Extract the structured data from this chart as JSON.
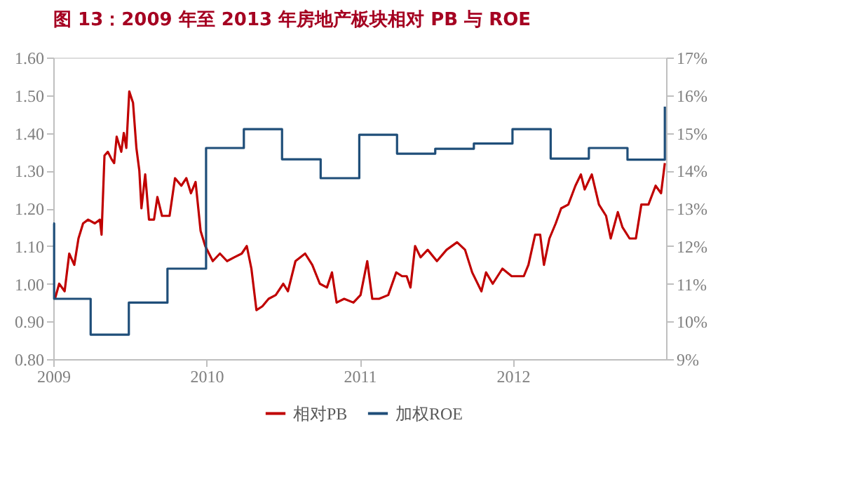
{
  "chart_data": {
    "type": "line",
    "title": "图 13：2009 年至 2013 年房地产板块相对 PB 与 ROE",
    "xlim": [
      "2009-01-01",
      "2012-12-31"
    ],
    "xticks": [
      {
        "value": "2009-01-01",
        "label": "2009"
      },
      {
        "value": "2010-01-01",
        "label": "2010"
      },
      {
        "value": "2011-01-01",
        "label": "2011"
      },
      {
        "value": "2012-01-01",
        "label": "2012"
      }
    ],
    "ylim": [
      0.8,
      1.6
    ],
    "yticks": [
      {
        "value": 0.8,
        "label": "0.80"
      },
      {
        "value": 0.9,
        "label": "0.90"
      },
      {
        "value": 1.0,
        "label": "1.00"
      },
      {
        "value": 1.1,
        "label": "1.10"
      },
      {
        "value": 1.2,
        "label": "1.20"
      },
      {
        "value": 1.3,
        "label": "1.30"
      },
      {
        "value": 1.4,
        "label": "1.40"
      },
      {
        "value": 1.5,
        "label": "1.50"
      },
      {
        "value": 1.6,
        "label": "1.60"
      }
    ],
    "y2lim": [
      9,
      17
    ],
    "y2ticks": [
      {
        "value": 9,
        "label": "9%"
      },
      {
        "value": 10,
        "label": "10%"
      },
      {
        "value": 11,
        "label": "11%"
      },
      {
        "value": 12,
        "label": "12%"
      },
      {
        "value": 13,
        "label": "13%"
      },
      {
        "value": 14,
        "label": "14%"
      },
      {
        "value": 15,
        "label": "15%"
      },
      {
        "value": 16,
        "label": "16%"
      },
      {
        "value": 17,
        "label": "17%"
      }
    ],
    "grid": false,
    "legend": "bottom",
    "series": [
      {
        "name": "相对PB",
        "color": "#c00000",
        "x": [
          "2009-01-05",
          "2009-01-15",
          "2009-01-28",
          "2009-02-08",
          "2009-02-20",
          "2009-03-02",
          "2009-03-13",
          "2009-03-25",
          "2009-04-10",
          "2009-04-22",
          "2009-04-26",
          "2009-05-03",
          "2009-05-11",
          "2009-05-20",
          "2009-05-26",
          "2009-06-01",
          "2009-06-12",
          "2009-06-18",
          "2009-06-24",
          "2009-07-01",
          "2009-07-10",
          "2009-07-18",
          "2009-07-25",
          "2009-07-30",
          "2009-08-08",
          "2009-08-17",
          "2009-08-29",
          "2009-09-06",
          "2009-09-17",
          "2009-10-05",
          "2009-10-18",
          "2009-11-02",
          "2009-11-14",
          "2009-11-25",
          "2009-12-06",
          "2009-12-18",
          "2009-12-29",
          "2010-01-16",
          "2010-02-02",
          "2010-02-19",
          "2010-03-08",
          "2010-03-26",
          "2010-04-07",
          "2010-04-18",
          "2010-04-30",
          "2010-05-14",
          "2010-05-29",
          "2010-06-15",
          "2010-07-03",
          "2010-07-14",
          "2010-08-01",
          "2010-08-24",
          "2010-09-10",
          "2010-09-28",
          "2010-10-15",
          "2010-10-27",
          "2010-11-07",
          "2010-11-25",
          "2010-12-17",
          "2011-01-03",
          "2011-01-19",
          "2011-01-31",
          "2011-02-16",
          "2011-03-10",
          "2011-03-29",
          "2011-04-12",
          "2011-04-23",
          "2011-05-02",
          "2011-05-13",
          "2011-05-26",
          "2011-06-12",
          "2011-07-04",
          "2011-07-27",
          "2011-08-21",
          "2011-09-09",
          "2011-09-26",
          "2011-10-18",
          "2011-10-29",
          "2011-11-14",
          "2011-12-07",
          "2011-12-29",
          "2012-01-27",
          "2012-02-07",
          "2012-02-23",
          "2012-03-06",
          "2012-03-15",
          "2012-03-28",
          "2012-04-12",
          "2012-04-25",
          "2012-05-12",
          "2012-05-29",
          "2012-06-11",
          "2012-06-20",
          "2012-07-07",
          "2012-07-24",
          "2012-08-10",
          "2012-08-21",
          "2012-09-07",
          "2012-09-18",
          "2012-10-05",
          "2012-10-20",
          "2012-11-02",
          "2012-11-19",
          "2012-12-06",
          "2012-12-19",
          "2012-12-28"
        ],
        "values": [
          0.96,
          1.0,
          0.98,
          1.08,
          1.05,
          1.12,
          1.16,
          1.17,
          1.16,
          1.17,
          1.13,
          1.34,
          1.35,
          1.33,
          1.32,
          1.39,
          1.35,
          1.4,
          1.36,
          1.51,
          1.48,
          1.36,
          1.3,
          1.2,
          1.29,
          1.17,
          1.17,
          1.23,
          1.18,
          1.18,
          1.28,
          1.26,
          1.28,
          1.24,
          1.27,
          1.14,
          1.1,
          1.06,
          1.08,
          1.06,
          1.07,
          1.08,
          1.1,
          1.04,
          0.93,
          0.94,
          0.96,
          0.97,
          1.0,
          0.98,
          1.06,
          1.08,
          1.05,
          1.0,
          0.99,
          1.03,
          0.95,
          0.96,
          0.95,
          0.97,
          1.06,
          0.96,
          0.96,
          0.97,
          1.03,
          1.02,
          1.02,
          0.99,
          1.1,
          1.07,
          1.09,
          1.06,
          1.09,
          1.11,
          1.09,
          1.03,
          0.98,
          1.03,
          1.0,
          1.04,
          1.02,
          1.02,
          1.05,
          1.13,
          1.13,
          1.05,
          1.12,
          1.16,
          1.2,
          1.21,
          1.26,
          1.29,
          1.25,
          1.29,
          1.21,
          1.18,
          1.12,
          1.19,
          1.15,
          1.12,
          1.12,
          1.21,
          1.21,
          1.26,
          1.24,
          1.32
        ]
      },
      {
        "name": "加权ROE",
        "color": "#1f4e79",
        "type": "step",
        "axis": "y2",
        "x": [
          "2009-01-01",
          "2009-01-03",
          "2009-03-31",
          "2009-06-30",
          "2009-09-30",
          "2009-12-31",
          "2010-03-31",
          "2010-06-30",
          "2010-09-30",
          "2010-12-31",
          "2011-03-31",
          "2011-06-30",
          "2011-09-30",
          "2011-12-31",
          "2012-03-31",
          "2012-06-30",
          "2012-09-30",
          "2012-12-27",
          "2012-12-28"
        ],
        "values": [
          12.6,
          10.6,
          9.65,
          10.5,
          11.4,
          14.6,
          15.1,
          14.3,
          13.8,
          14.95,
          14.45,
          14.58,
          14.72,
          15.1,
          14.32,
          14.6,
          14.29,
          14.29,
          15.7
        ]
      }
    ]
  }
}
